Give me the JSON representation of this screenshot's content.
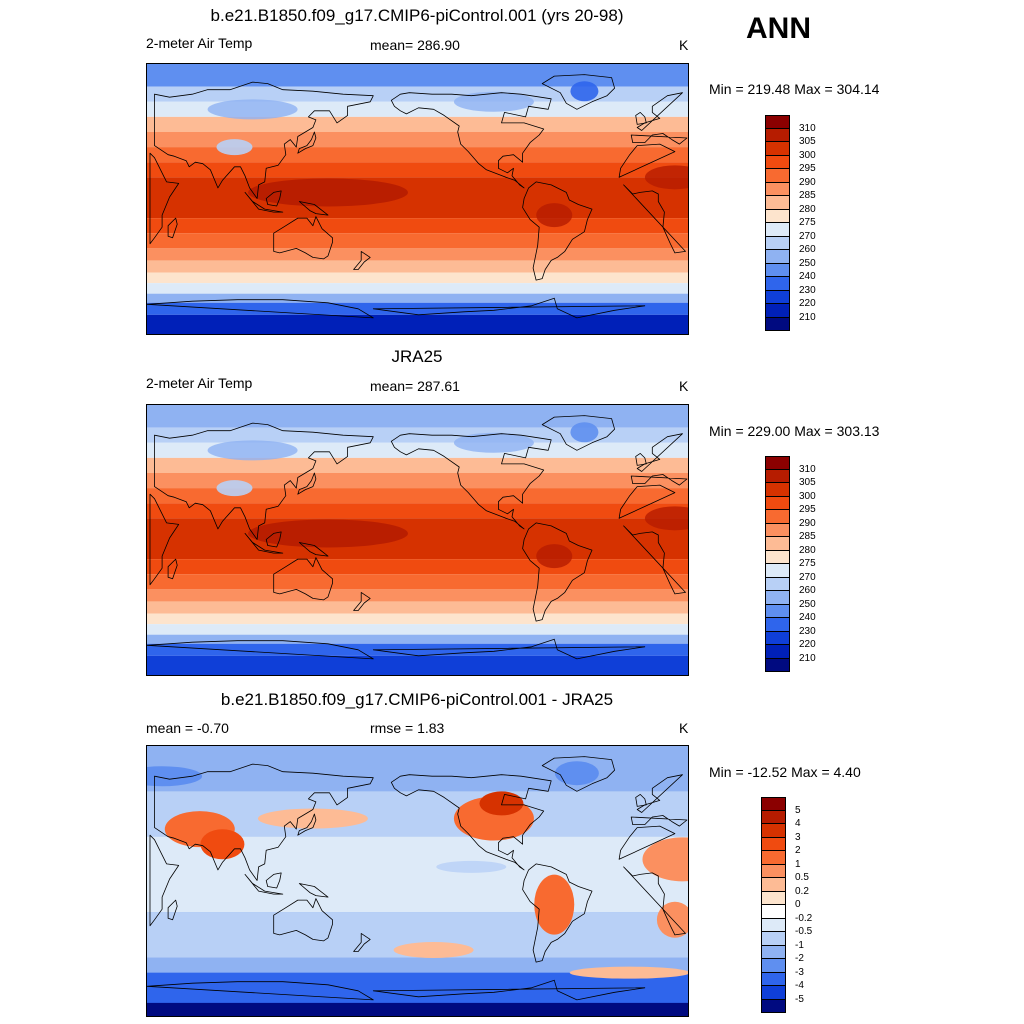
{
  "season": "ANN",
  "panels": [
    {
      "title": "b.e21.B1850.f09_g17.CMIP6-piControl.001 (yrs 20-98)",
      "left_label": "2-meter Air Temp",
      "center_label": "mean= 286.90",
      "units": "K",
      "minmax": "Min = 219.48 Max = 304.14",
      "field": "model"
    },
    {
      "title": "JRA25",
      "left_label": "2-meter Air Temp",
      "center_label": "mean= 287.61",
      "units": "K",
      "minmax": "Min = 229.00 Max = 303.13",
      "field": "obs"
    },
    {
      "title": "b.e21.B1850.f09_g17.CMIP6-piControl.001 - JRA25",
      "left_label": "mean =  -0.70",
      "center_label": "rmse =   1.83",
      "units": "K",
      "minmax": "Min = -12.52 Max =   4.40",
      "field": "diff"
    }
  ],
  "colorbars": {
    "abs": {
      "labels": [
        "310",
        "305",
        "300",
        "295",
        "290",
        "285",
        "280",
        "275",
        "270",
        "260",
        "250",
        "240",
        "230",
        "220",
        "210"
      ],
      "colors": [
        "#8b0000",
        "#b61c00",
        "#d63200",
        "#f04b10",
        "#f86a30",
        "#fb9060",
        "#fdbb95",
        "#fde4cd",
        "#ddeaf8",
        "#b8d0f6",
        "#8fb2f2",
        "#5f8ff0",
        "#2f65ec",
        "#0f3fd8",
        "#0020b8",
        "#000a80"
      ]
    },
    "diff": {
      "labels": [
        "5",
        "4",
        "3",
        "2",
        "1",
        "0.5",
        "0.2",
        "0",
        "-0.2",
        "-0.5",
        "-1",
        "-2",
        "-3",
        "-4",
        "-5"
      ],
      "colors": [
        "#8b0000",
        "#b61c00",
        "#d63200",
        "#f04b10",
        "#f86a30",
        "#fb9060",
        "#fdbb95",
        "#fde4cd",
        "#ffffff",
        "#ddeaf8",
        "#b8d0f6",
        "#8fb2f2",
        "#5f8ff0",
        "#2f65ec",
        "#0f3fd8",
        "#000a80"
      ]
    }
  }
}
